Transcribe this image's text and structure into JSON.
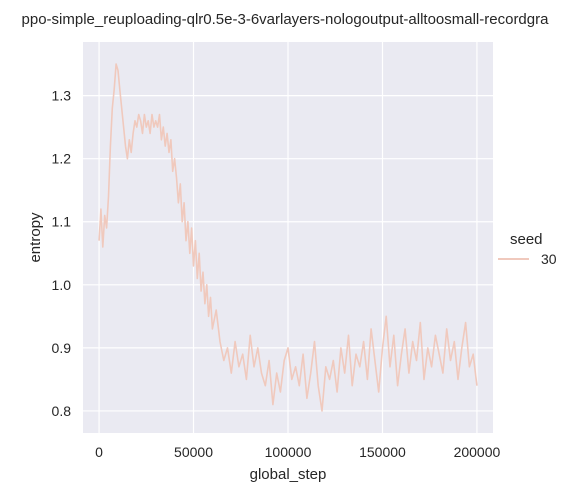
{
  "chart_data": {
    "type": "line",
    "title": "ppo-simple_reuploading-qlr0.5e-3-6varlayers-nologoutput-alltoosmall-recordgra",
    "xlabel": "global_step",
    "ylabel": "entropy",
    "xlim": [
      -8500,
      208500
    ],
    "ylim": [
      0.765,
      1.385
    ],
    "xticks": [
      0,
      50000,
      100000,
      150000,
      200000
    ],
    "xtick_labels": [
      "0",
      "50000",
      "100000",
      "150000",
      "200000"
    ],
    "yticks": [
      0.8,
      0.9,
      1.0,
      1.1,
      1.2,
      1.3
    ],
    "ytick_labels": [
      "0.8",
      "0.9",
      "1.0",
      "1.1",
      "1.2",
      "1.3"
    ],
    "grid": true,
    "legend": {
      "title": "seed",
      "position": "right",
      "entries": [
        "30"
      ]
    },
    "series": [
      {
        "name": "30",
        "color": "#f0c9bd",
        "x": [
          0,
          1000,
          2000,
          3000,
          4000,
          5000,
          6000,
          7000,
          8000,
          9000,
          10000,
          11000,
          12000,
          13000,
          14000,
          15000,
          16000,
          17000,
          18000,
          19000,
          20000,
          21000,
          22000,
          23000,
          24000,
          25000,
          26000,
          27000,
          28000,
          29000,
          30000,
          31000,
          32000,
          33000,
          34000,
          35000,
          36000,
          37000,
          38000,
          39000,
          40000,
          41000,
          42000,
          43000,
          44000,
          45000,
          46000,
          47000,
          48000,
          49000,
          50000,
          51000,
          52000,
          53000,
          54000,
          55000,
          56000,
          57000,
          58000,
          59000,
          60000,
          62000,
          64000,
          66000,
          68000,
          70000,
          72000,
          74000,
          76000,
          78000,
          80000,
          82000,
          84000,
          86000,
          88000,
          90000,
          92000,
          94000,
          96000,
          98000,
          100000,
          102000,
          104000,
          106000,
          108000,
          110000,
          112000,
          114000,
          116000,
          118000,
          120000,
          122000,
          124000,
          126000,
          128000,
          130000,
          132000,
          134000,
          136000,
          138000,
          140000,
          142000,
          144000,
          146000,
          148000,
          150000,
          152000,
          154000,
          156000,
          158000,
          160000,
          162000,
          164000,
          166000,
          168000,
          170000,
          172000,
          174000,
          176000,
          178000,
          180000,
          182000,
          184000,
          186000,
          188000,
          190000,
          192000,
          194000,
          196000,
          198000,
          200000
        ],
        "y": [
          1.07,
          1.12,
          1.06,
          1.11,
          1.09,
          1.14,
          1.22,
          1.28,
          1.31,
          1.35,
          1.34,
          1.31,
          1.28,
          1.25,
          1.22,
          1.2,
          1.23,
          1.21,
          1.24,
          1.26,
          1.25,
          1.27,
          1.26,
          1.24,
          1.27,
          1.25,
          1.26,
          1.24,
          1.27,
          1.25,
          1.26,
          1.25,
          1.27,
          1.23,
          1.25,
          1.22,
          1.24,
          1.21,
          1.23,
          1.18,
          1.2,
          1.17,
          1.13,
          1.16,
          1.1,
          1.13,
          1.07,
          1.1,
          1.05,
          1.09,
          1.03,
          1.07,
          1.01,
          1.05,
          0.99,
          1.02,
          0.97,
          1.0,
          0.95,
          0.98,
          0.93,
          0.96,
          0.91,
          0.88,
          0.9,
          0.86,
          0.91,
          0.87,
          0.89,
          0.85,
          0.92,
          0.87,
          0.9,
          0.86,
          0.84,
          0.88,
          0.81,
          0.86,
          0.83,
          0.88,
          0.9,
          0.85,
          0.87,
          0.84,
          0.89,
          0.82,
          0.86,
          0.91,
          0.84,
          0.8,
          0.87,
          0.85,
          0.88,
          0.83,
          0.9,
          0.86,
          0.92,
          0.84,
          0.89,
          0.87,
          0.91,
          0.85,
          0.93,
          0.88,
          0.83,
          0.9,
          0.95,
          0.87,
          0.92,
          0.84,
          0.89,
          0.93,
          0.86,
          0.91,
          0.88,
          0.94,
          0.85,
          0.9,
          0.87,
          0.92,
          0.89,
          0.86,
          0.93,
          0.88,
          0.91,
          0.85,
          0.9,
          0.94,
          0.87,
          0.89,
          0.84
        ]
      }
    ]
  }
}
